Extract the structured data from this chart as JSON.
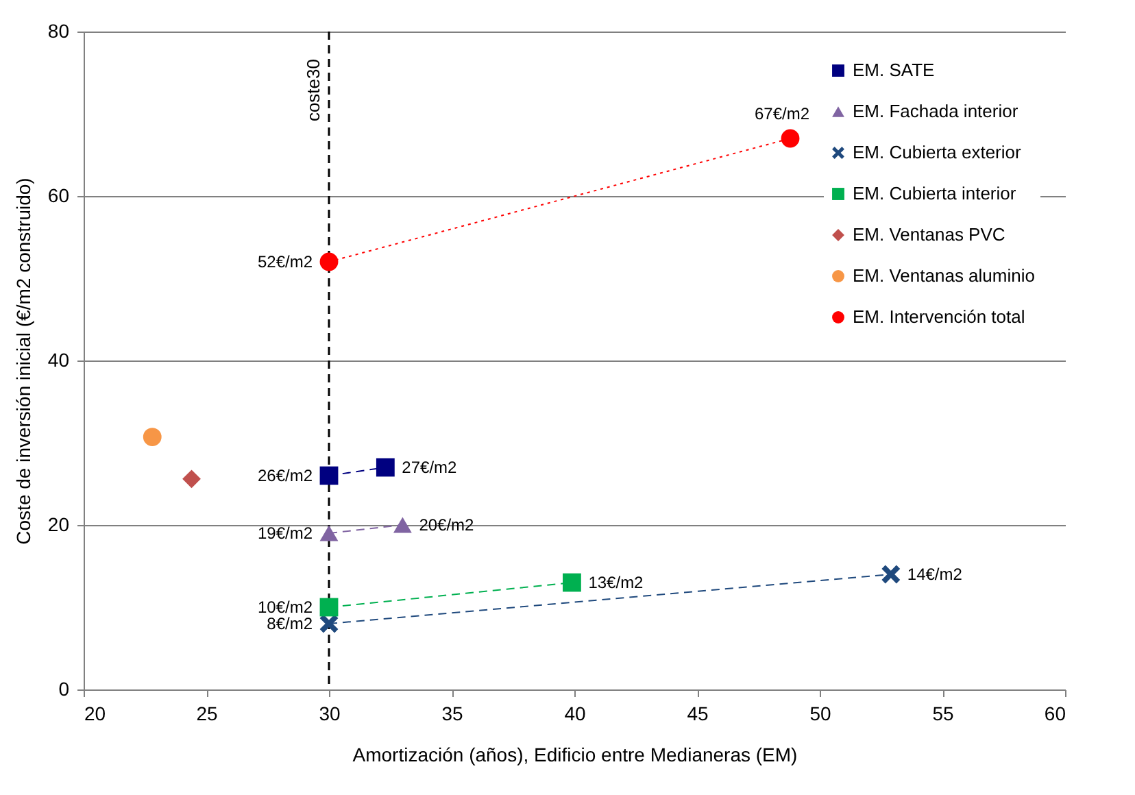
{
  "chart_data": {
    "type": "scatter",
    "xlabel": "Amortización (años), Edificio entre Medianeras (EM)",
    "ylabel": "Coste de inversión inicial (€/m2 construido)",
    "xlim": [
      20,
      60
    ],
    "xticks": [
      20,
      25,
      30,
      35,
      40,
      45,
      50,
      55,
      60
    ],
    "ylim": [
      0,
      80
    ],
    "yticks": [
      0,
      20,
      40,
      60,
      80
    ],
    "grid": "y",
    "legend": "top right",
    "ref_lines": [
      {
        "axis": "x",
        "value": 30,
        "label": "coste30",
        "color": "#000000",
        "line_style": "dashed"
      }
    ],
    "series": [
      {
        "name": "EM. SATE",
        "type": "line",
        "color": "#000080",
        "marker": "square",
        "line_style": "dashed",
        "x": [
          30,
          32.3
        ],
        "values": [
          26,
          27
        ],
        "value_labels": [
          "26€/m2",
          "27€/m2"
        ]
      },
      {
        "name": "EM. Fachada interior",
        "type": "line",
        "color": "#8064a2",
        "marker": "triangle",
        "line_style": "dashed",
        "x": [
          30,
          33
        ],
        "values": [
          19,
          20
        ],
        "value_labels": [
          "19€/m2",
          "20€/m2"
        ]
      },
      {
        "name": "EM. Cubierta exterior",
        "type": "line",
        "color": "#1f497d",
        "marker": "cross",
        "line_style": "dashed",
        "x": [
          30,
          52.9
        ],
        "values": [
          8,
          14
        ],
        "value_labels": [
          "8€/m2",
          "14€/m2"
        ]
      },
      {
        "name": "EM. Cubierta interior",
        "type": "line",
        "color": "#00b050",
        "marker": "square",
        "line_style": "dashed",
        "x": [
          30,
          39.9
        ],
        "values": [
          10,
          13
        ],
        "value_labels": [
          "10€/m2",
          "13€/m2"
        ]
      },
      {
        "name": "EM. Ventanas PVC",
        "type": "scatter",
        "color": "#c0504d",
        "marker": "diamond",
        "x": [
          24.4
        ],
        "values": [
          25.6
        ]
      },
      {
        "name": "EM. Ventanas aluminio",
        "type": "scatter",
        "color": "#f79646",
        "marker": "circle",
        "x": [
          22.8
        ],
        "values": [
          30.7
        ]
      },
      {
        "name": "EM. Intervención total",
        "type": "line",
        "color": "#ff0000",
        "marker": "circle",
        "line_style": "dotted",
        "x": [
          30,
          48.8
        ],
        "values": [
          52,
          67
        ],
        "value_labels": [
          "52€/m2",
          "67€/m2"
        ]
      }
    ]
  }
}
